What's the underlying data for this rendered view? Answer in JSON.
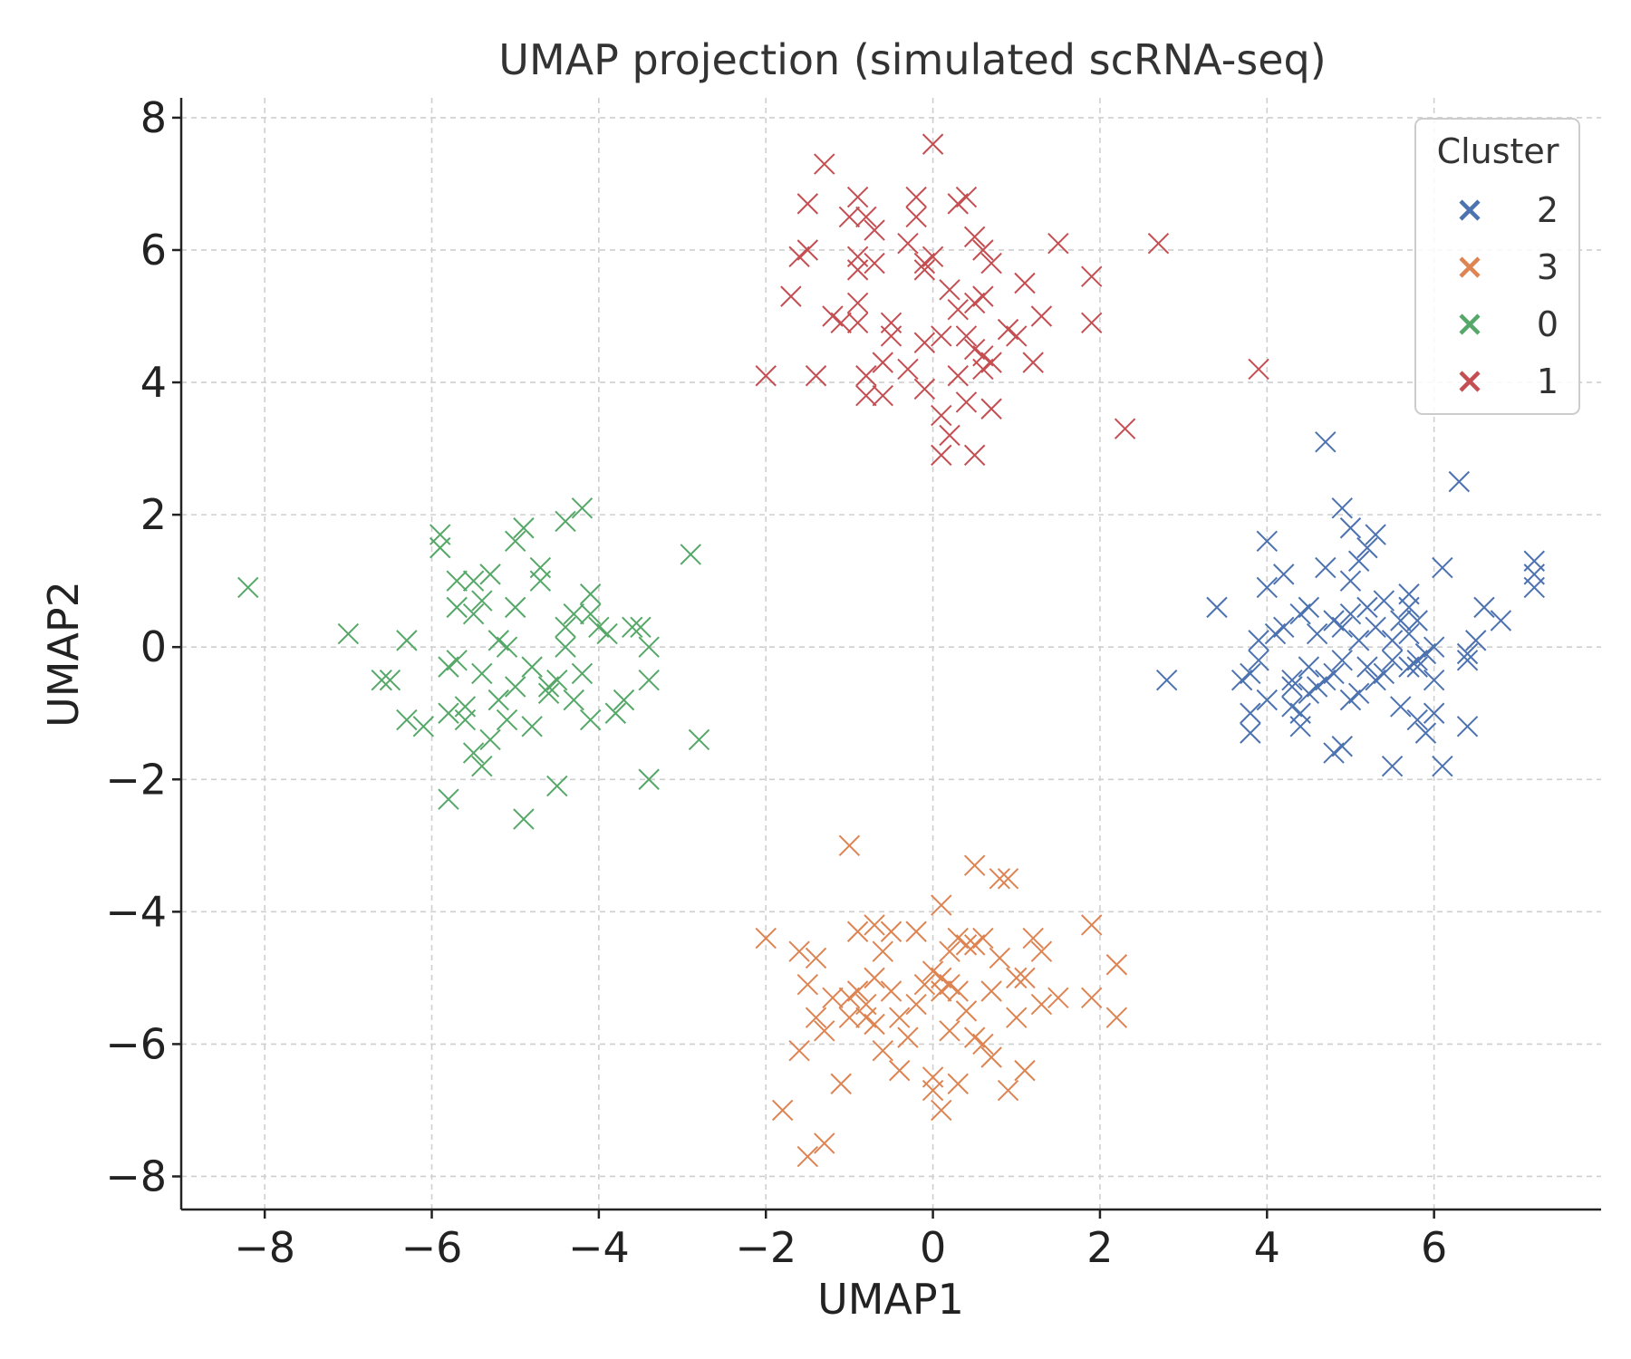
{
  "chart_data": {
    "type": "scatter",
    "title": "UMAP projection (simulated scRNA-seq)",
    "xlabel": "UMAP1",
    "ylabel": "UMAP2",
    "xlim": [
      -9,
      8
    ],
    "ylim": [
      -8.5,
      8.3
    ],
    "xticks": [
      -8,
      -6,
      -4,
      -2,
      0,
      2,
      4,
      6
    ],
    "yticks": [
      -8,
      -6,
      -4,
      -2,
      0,
      2,
      4,
      6,
      8
    ],
    "grid": true,
    "marker": "x",
    "legend": {
      "title": "Cluster",
      "position": "top-right"
    },
    "series": [
      {
        "name": "2",
        "color": "#4c72b0",
        "points": [
          [
            2.8,
            -0.5
          ],
          [
            3.4,
            0.6
          ],
          [
            3.7,
            -0.5
          ],
          [
            3.8,
            -0.4
          ],
          [
            3.8,
            -1.0
          ],
          [
            3.8,
            -1.3
          ],
          [
            3.9,
            0.1
          ],
          [
            3.9,
            -0.2
          ],
          [
            4.0,
            0.9
          ],
          [
            4.0,
            1.6
          ],
          [
            4.0,
            -0.8
          ],
          [
            4.1,
            0.2
          ],
          [
            4.2,
            0.3
          ],
          [
            4.2,
            1.1
          ],
          [
            4.3,
            -0.5
          ],
          [
            4.3,
            -0.6
          ],
          [
            4.3,
            -0.9
          ],
          [
            4.4,
            -1.0
          ],
          [
            4.4,
            -1.2
          ],
          [
            4.4,
            0.5
          ],
          [
            4.5,
            0.6
          ],
          [
            4.5,
            -0.3
          ],
          [
            4.5,
            -0.7
          ],
          [
            4.6,
            0.2
          ],
          [
            4.6,
            -0.6
          ],
          [
            4.7,
            3.1
          ],
          [
            4.7,
            1.2
          ],
          [
            4.7,
            -0.5
          ],
          [
            4.8,
            0.4
          ],
          [
            4.8,
            -0.4
          ],
          [
            4.8,
            -1.6
          ],
          [
            4.9,
            -1.5
          ],
          [
            4.9,
            0.3
          ],
          [
            4.9,
            -0.2
          ],
          [
            4.9,
            2.1
          ],
          [
            5.0,
            1.0
          ],
          [
            5.0,
            -0.8
          ],
          [
            5.0,
            1.8
          ],
          [
            5.0,
            0.5
          ],
          [
            5.1,
            1.3
          ],
          [
            5.1,
            0.1
          ],
          [
            5.1,
            -0.7
          ],
          [
            5.2,
            0.6
          ],
          [
            5.2,
            1.5
          ],
          [
            5.2,
            -0.3
          ],
          [
            5.3,
            0.3
          ],
          [
            5.3,
            -0.5
          ],
          [
            5.3,
            1.7
          ],
          [
            5.4,
            -0.4
          ],
          [
            5.4,
            0.7
          ],
          [
            5.5,
            0.1
          ],
          [
            5.5,
            -0.2
          ],
          [
            5.5,
            -1.8
          ],
          [
            5.6,
            -0.9
          ],
          [
            5.6,
            0.4
          ],
          [
            5.7,
            0.2
          ],
          [
            5.7,
            -0.3
          ],
          [
            5.7,
            0.8
          ],
          [
            5.7,
            0.6
          ],
          [
            5.8,
            -0.2
          ],
          [
            5.8,
            -0.3
          ],
          [
            5.8,
            -1.1
          ],
          [
            5.8,
            0.4
          ],
          [
            5.9,
            -0.1
          ],
          [
            5.9,
            -1.3
          ],
          [
            6.0,
            -0.5
          ],
          [
            6.0,
            -1.0
          ],
          [
            6.0,
            0.0
          ],
          [
            6.1,
            1.2
          ],
          [
            6.1,
            -1.8
          ],
          [
            6.3,
            2.5
          ],
          [
            6.4,
            -0.2
          ],
          [
            6.4,
            -0.1
          ],
          [
            6.4,
            -1.2
          ],
          [
            6.5,
            0.1
          ],
          [
            6.6,
            0.6
          ],
          [
            6.8,
            0.4
          ],
          [
            7.2,
            1.3
          ],
          [
            7.2,
            1.1
          ],
          [
            7.2,
            0.9
          ]
        ]
      },
      {
        "name": "3",
        "color": "#dd8452",
        "points": [
          [
            -2.0,
            -4.4
          ],
          [
            -1.8,
            -7.0
          ],
          [
            -1.6,
            -6.1
          ],
          [
            -1.6,
            -4.6
          ],
          [
            -1.5,
            -7.7
          ],
          [
            -1.5,
            -5.1
          ],
          [
            -1.4,
            -5.6
          ],
          [
            -1.4,
            -4.7
          ],
          [
            -1.3,
            -5.8
          ],
          [
            -1.3,
            -7.5
          ],
          [
            -1.2,
            -5.3
          ],
          [
            -1.1,
            -6.6
          ],
          [
            -1.0,
            -3.0
          ],
          [
            -1.0,
            -5.3
          ],
          [
            -1.0,
            -5.6
          ],
          [
            -0.9,
            -4.3
          ],
          [
            -0.9,
            -5.2
          ],
          [
            -0.8,
            -5.4
          ],
          [
            -0.8,
            -5.6
          ],
          [
            -0.7,
            -4.2
          ],
          [
            -0.7,
            -5.0
          ],
          [
            -0.7,
            -5.7
          ],
          [
            -0.6,
            -4.6
          ],
          [
            -0.6,
            -6.1
          ],
          [
            -0.5,
            -4.3
          ],
          [
            -0.5,
            -5.2
          ],
          [
            -0.4,
            -5.6
          ],
          [
            -0.4,
            -6.4
          ],
          [
            -0.3,
            -5.9
          ],
          [
            -0.2,
            -4.3
          ],
          [
            -0.2,
            -5.4
          ],
          [
            -0.1,
            -5.1
          ],
          [
            0.0,
            -6.5
          ],
          [
            0.0,
            -4.9
          ],
          [
            0.0,
            -6.7
          ],
          [
            0.1,
            -3.9
          ],
          [
            0.1,
            -5.0
          ],
          [
            0.1,
            -5.2
          ],
          [
            0.1,
            -7.0
          ],
          [
            0.2,
            -5.1
          ],
          [
            0.2,
            -4.6
          ],
          [
            0.2,
            -5.8
          ],
          [
            0.3,
            -4.4
          ],
          [
            0.3,
            -5.2
          ],
          [
            0.3,
            -6.6
          ],
          [
            0.4,
            -4.5
          ],
          [
            0.4,
            -5.5
          ],
          [
            0.5,
            -4.5
          ],
          [
            0.5,
            -3.3
          ],
          [
            0.5,
            -5.9
          ],
          [
            0.6,
            -4.4
          ],
          [
            0.6,
            -6.0
          ],
          [
            0.7,
            -6.2
          ],
          [
            0.7,
            -5.2
          ],
          [
            0.8,
            -3.5
          ],
          [
            0.8,
            -4.7
          ],
          [
            0.9,
            -3.5
          ],
          [
            0.9,
            -6.7
          ],
          [
            1.0,
            -5.6
          ],
          [
            1.0,
            -5.0
          ],
          [
            1.1,
            -5.0
          ],
          [
            1.1,
            -6.4
          ],
          [
            1.2,
            -4.4
          ],
          [
            1.3,
            -4.6
          ],
          [
            1.3,
            -5.4
          ],
          [
            1.5,
            -5.3
          ],
          [
            1.9,
            -5.3
          ],
          [
            1.9,
            -4.2
          ],
          [
            2.2,
            -4.8
          ],
          [
            2.2,
            -5.6
          ]
        ]
      },
      {
        "name": "0",
        "color": "#55a868",
        "points": [
          [
            -8.2,
            0.9
          ],
          [
            -7.0,
            0.2
          ],
          [
            -6.6,
            -0.5
          ],
          [
            -6.5,
            -0.5
          ],
          [
            -6.3,
            -1.1
          ],
          [
            -6.3,
            0.1
          ],
          [
            -6.1,
            -1.2
          ],
          [
            -5.9,
            1.7
          ],
          [
            -5.9,
            1.5
          ],
          [
            -5.8,
            -0.3
          ],
          [
            -5.8,
            -1.0
          ],
          [
            -5.8,
            -2.3
          ],
          [
            -5.7,
            0.6
          ],
          [
            -5.7,
            1.0
          ],
          [
            -5.7,
            -0.2
          ],
          [
            -5.6,
            -1.1
          ],
          [
            -5.6,
            -0.9
          ],
          [
            -5.5,
            0.5
          ],
          [
            -5.5,
            1.0
          ],
          [
            -5.5,
            -1.6
          ],
          [
            -5.4,
            -1.8
          ],
          [
            -5.4,
            0.7
          ],
          [
            -5.4,
            -0.4
          ],
          [
            -5.3,
            1.1
          ],
          [
            -5.3,
            -1.4
          ],
          [
            -5.2,
            0.1
          ],
          [
            -5.2,
            -0.8
          ],
          [
            -5.1,
            0.0
          ],
          [
            -5.1,
            -1.1
          ],
          [
            -5.0,
            1.6
          ],
          [
            -5.0,
            0.6
          ],
          [
            -5.0,
            -0.6
          ],
          [
            -4.9,
            -2.6
          ],
          [
            -4.9,
            1.8
          ],
          [
            -4.8,
            -0.3
          ],
          [
            -4.8,
            -1.2
          ],
          [
            -4.7,
            1.0
          ],
          [
            -4.7,
            1.2
          ],
          [
            -4.6,
            -0.6
          ],
          [
            -4.6,
            -0.7
          ],
          [
            -4.5,
            -2.1
          ],
          [
            -4.5,
            -0.5
          ],
          [
            -4.4,
            1.9
          ],
          [
            -4.4,
            0.3
          ],
          [
            -4.4,
            0.0
          ],
          [
            -4.3,
            -0.8
          ],
          [
            -4.3,
            0.5
          ],
          [
            -4.2,
            2.1
          ],
          [
            -4.2,
            -0.4
          ],
          [
            -4.1,
            0.5
          ],
          [
            -4.1,
            0.8
          ],
          [
            -4.1,
            -1.1
          ],
          [
            -4.0,
            0.3
          ],
          [
            -3.9,
            0.2
          ],
          [
            -3.8,
            -1.0
          ],
          [
            -3.7,
            -0.8
          ],
          [
            -3.6,
            0.3
          ],
          [
            -3.5,
            0.3
          ],
          [
            -3.4,
            -0.5
          ],
          [
            -3.4,
            0.0
          ],
          [
            -3.4,
            -2.0
          ],
          [
            -2.9,
            1.4
          ],
          [
            -2.8,
            -1.4
          ]
        ]
      },
      {
        "name": "1",
        "color": "#c44e52",
        "points": [
          [
            -2.0,
            4.1
          ],
          [
            -1.7,
            5.3
          ],
          [
            -1.6,
            5.9
          ],
          [
            -1.5,
            6.7
          ],
          [
            -1.5,
            6.0
          ],
          [
            -1.4,
            4.1
          ],
          [
            -1.3,
            7.3
          ],
          [
            -1.2,
            5.0
          ],
          [
            -1.1,
            4.9
          ],
          [
            -1.0,
            6.5
          ],
          [
            -0.9,
            6.8
          ],
          [
            -0.9,
            5.9
          ],
          [
            -0.9,
            5.7
          ],
          [
            -0.9,
            5.2
          ],
          [
            -0.9,
            4.9
          ],
          [
            -0.8,
            6.5
          ],
          [
            -0.8,
            4.1
          ],
          [
            -0.8,
            3.8
          ],
          [
            -0.7,
            5.8
          ],
          [
            -0.7,
            6.3
          ],
          [
            -0.6,
            4.3
          ],
          [
            -0.6,
            3.8
          ],
          [
            -0.5,
            4.7
          ],
          [
            -0.5,
            4.9
          ],
          [
            -0.3,
            6.1
          ],
          [
            -0.3,
            4.2
          ],
          [
            -0.2,
            6.5
          ],
          [
            -0.2,
            6.8
          ],
          [
            -0.1,
            5.7
          ],
          [
            -0.1,
            5.8
          ],
          [
            -0.1,
            4.6
          ],
          [
            -0.1,
            3.9
          ],
          [
            0.0,
            7.6
          ],
          [
            0.0,
            5.9
          ],
          [
            0.1,
            3.5
          ],
          [
            0.1,
            2.9
          ],
          [
            0.1,
            4.7
          ],
          [
            0.2,
            5.4
          ],
          [
            0.2,
            3.2
          ],
          [
            0.3,
            6.7
          ],
          [
            0.3,
            5.1
          ],
          [
            0.3,
            4.1
          ],
          [
            0.4,
            6.8
          ],
          [
            0.4,
            4.7
          ],
          [
            0.4,
            3.7
          ],
          [
            0.5,
            6.2
          ],
          [
            0.5,
            5.2
          ],
          [
            0.5,
            4.5
          ],
          [
            0.5,
            2.9
          ],
          [
            0.6,
            6.0
          ],
          [
            0.6,
            5.3
          ],
          [
            0.6,
            4.4
          ],
          [
            0.6,
            4.2
          ],
          [
            0.7,
            5.8
          ],
          [
            0.7,
            4.3
          ],
          [
            0.7,
            3.6
          ],
          [
            0.9,
            4.8
          ],
          [
            1.0,
            4.7
          ],
          [
            1.1,
            5.5
          ],
          [
            1.2,
            4.3
          ],
          [
            1.3,
            5.0
          ],
          [
            1.5,
            6.1
          ],
          [
            1.9,
            5.6
          ],
          [
            1.9,
            4.9
          ],
          [
            2.3,
            3.3
          ],
          [
            2.7,
            6.1
          ],
          [
            3.9,
            4.2
          ]
        ]
      }
    ]
  }
}
